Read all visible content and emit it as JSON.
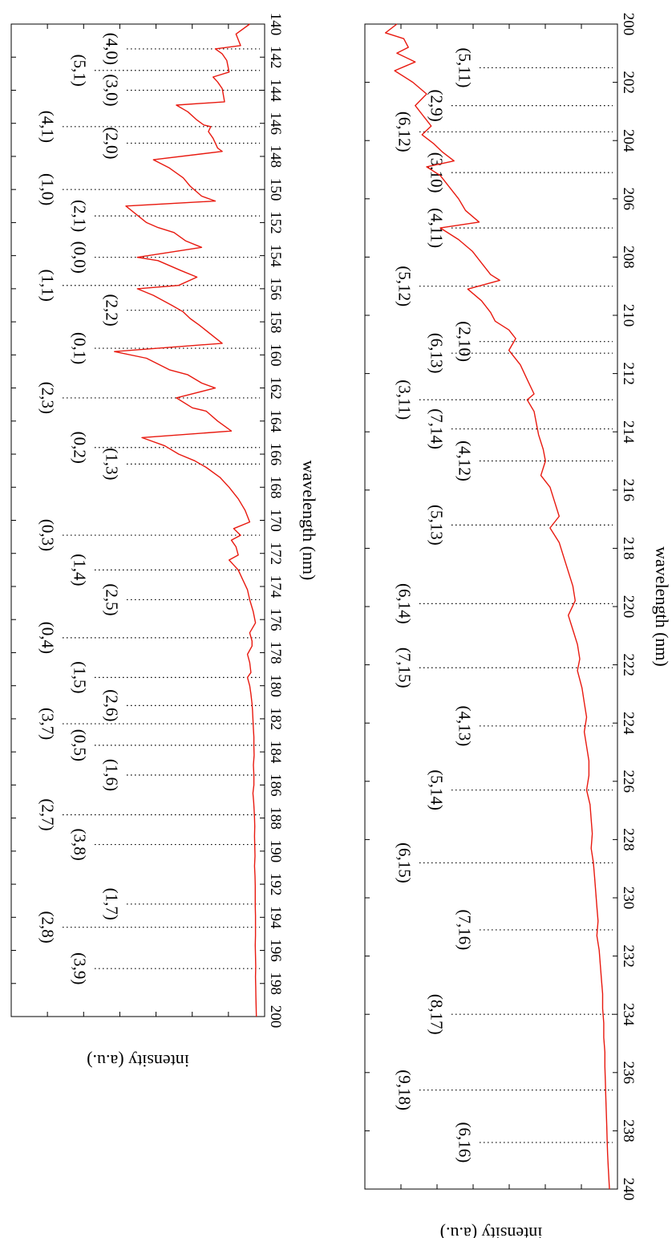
{
  "chart_data": [
    {
      "type": "line",
      "xlabel": "wavelength (nm)",
      "ylabel": "intensity (a.u.)",
      "xlim": [
        140,
        200
      ],
      "xticks": [
        140,
        142,
        144,
        146,
        148,
        150,
        152,
        154,
        156,
        158,
        160,
        162,
        164,
        166,
        168,
        170,
        172,
        174,
        176,
        178,
        180,
        182,
        184,
        186,
        188,
        190,
        192,
        194,
        196,
        198,
        200
      ],
      "ylim": [
        0,
        1
      ],
      "series": [
        {
          "color": "#e8190f",
          "x": [
            140.0,
            140.6,
            141.3,
            141.5,
            141.8,
            142.2,
            142.9,
            143.2,
            143.5,
            143.9,
            144.7,
            144.9,
            145.3,
            145.8,
            146.1,
            146.2,
            146.5,
            146.9,
            147.5,
            147.7,
            148.2,
            148.7,
            149.3,
            149.8,
            150.4,
            150.7,
            151.0,
            152.0,
            152.3,
            152.6,
            153.1,
            153.5,
            154.1,
            154.3,
            154.9,
            155.3,
            155.8,
            156.0,
            156.4,
            157.0,
            157.4,
            157.8,
            158.2,
            159.3,
            159.8,
            160.2,
            160.9,
            161.2,
            161.7,
            162.0,
            162.6,
            163.2,
            163.4,
            164.0,
            164.6,
            165.0,
            165.5,
            166.0,
            166.4,
            166.8,
            167.4,
            168.0,
            168.7,
            169.4,
            170.1,
            170.5,
            170.9,
            171.2,
            171.6,
            172.1,
            172.4,
            172.7,
            173.0,
            173.6,
            174.2,
            174.8,
            175.5,
            176.2,
            176.8,
            177.3,
            177.6,
            178.1,
            178.6,
            179.2,
            179.5,
            180.0,
            180.5,
            181.1,
            181.5,
            182.0,
            182.6,
            183.1,
            183.7,
            184.2,
            184.8,
            185.4,
            186.0,
            186.5,
            187.0,
            187.5,
            188.0,
            188.5,
            189.1,
            189.7,
            190.3,
            190.9,
            191.5,
            192.1,
            192.7,
            193.3,
            193.9,
            194.5,
            195.1,
            195.7,
            196.3,
            197.0,
            197.6,
            198.2,
            198.8,
            199.4,
            200.0
          ],
          "y": [
            0.03,
            0.09,
            0.07,
            0.18,
            0.15,
            0.13,
            0.12,
            0.19,
            0.17,
            0.15,
            0.14,
            0.35,
            0.3,
            0.26,
            0.23,
            0.2,
            0.21,
            0.19,
            0.17,
            0.15,
            0.45,
            0.38,
            0.32,
            0.29,
            0.24,
            0.18,
            0.57,
            0.48,
            0.43,
            0.36,
            0.31,
            0.24,
            0.52,
            0.43,
            0.33,
            0.26,
            0.34,
            0.52,
            0.45,
            0.37,
            0.32,
            0.29,
            0.25,
            0.15,
            0.62,
            0.48,
            0.38,
            0.3,
            0.24,
            0.18,
            0.35,
            0.28,
            0.22,
            0.17,
            0.11,
            0.5,
            0.4,
            0.34,
            0.27,
            0.22,
            0.16,
            0.12,
            0.08,
            0.05,
            0.03,
            0.1,
            0.07,
            0.11,
            0.09,
            0.08,
            0.12,
            0.1,
            0.08,
            0.06,
            0.04,
            0.03,
            0.015,
            0.005,
            0.03,
            0.02,
            0.02,
            0.04,
            0.03,
            0.025,
            0.04,
            0.03,
            0.025,
            0.02,
            0.018,
            0.016,
            0.014,
            0.012,
            0.012,
            0.011,
            0.014,
            0.012,
            0.012,
            0.016,
            0.013,
            0.011,
            0.009,
            0.008,
            0.009,
            0.008,
            0.007,
            0.009,
            0.007,
            0.006,
            0.006,
            0.006,
            0.005,
            0.005,
            0.005,
            0.006,
            0.005,
            0.004,
            0.005,
            0.004,
            0.003,
            0.002,
            0.001
          ]
        }
      ],
      "annotations": [
        {
          "label": "(4,0)",
          "x": 141.5,
          "row": 3
        },
        {
          "label": "(5,1)",
          "x": 142.8,
          "row": 2
        },
        {
          "label": "(3,0)",
          "x": 144.0,
          "row": 3
        },
        {
          "label": "(4,1)",
          "x": 146.2,
          "row": 1
        },
        {
          "label": "(2,0)",
          "x": 147.2,
          "row": 3
        },
        {
          "label": "(1,0)",
          "x": 150.0,
          "row": 1
        },
        {
          "label": "(2,1)",
          "x": 151.6,
          "row": 2
        },
        {
          "label": "(0,0)",
          "x": 154.1,
          "row": 2
        },
        {
          "label": "(1,1)",
          "x": 155.8,
          "row": 1
        },
        {
          "label": "(2,2)",
          "x": 157.3,
          "row": 3
        },
        {
          "label": "(0,1)",
          "x": 159.6,
          "row": 2
        },
        {
          "label": "(2,3)",
          "x": 162.6,
          "row": 1
        },
        {
          "label": "(0,2)",
          "x": 165.6,
          "row": 2
        },
        {
          "label": "(1,3)",
          "x": 166.6,
          "row": 3
        },
        {
          "label": "(0,3)",
          "x": 170.9,
          "row": 1
        },
        {
          "label": "(1,4)",
          "x": 173.0,
          "row": 2
        },
        {
          "label": "(2,5)",
          "x": 174.8,
          "row": 3
        },
        {
          "label": "(0,4)",
          "x": 177.1,
          "row": 1
        },
        {
          "label": "(1,5)",
          "x": 179.5,
          "row": 2
        },
        {
          "label": "(2,6)",
          "x": 181.2,
          "row": 3
        },
        {
          "label": "(3,7)",
          "x": 182.3,
          "row": 1
        },
        {
          "label": "(0,5)",
          "x": 183.6,
          "row": 2
        },
        {
          "label": "(1,6)",
          "x": 185.4,
          "row": 3
        },
        {
          "label": "(2,7)",
          "x": 187.8,
          "row": 1
        },
        {
          "label": "(3,8)",
          "x": 189.6,
          "row": 2
        },
        {
          "label": "(1,7)",
          "x": 193.2,
          "row": 3
        },
        {
          "label": "(2,8)",
          "x": 194.6,
          "row": 1
        },
        {
          "label": "(3,9)",
          "x": 197.1,
          "row": 2
        }
      ]
    },
    {
      "type": "line",
      "xlabel": "wavelength (nm)",
      "ylabel": "intensity (a.u.)",
      "xlim": [
        200,
        240
      ],
      "xticks": [
        200,
        202,
        204,
        206,
        208,
        210,
        212,
        214,
        216,
        218,
        220,
        222,
        224,
        226,
        228,
        230,
        232,
        234,
        236,
        238,
        240
      ],
      "ylim": [
        0,
        1
      ],
      "series": [
        {
          "color": "#e8190f",
          "x": [
            200.0,
            200.3,
            200.5,
            200.8,
            201.0,
            201.3,
            201.6,
            202.0,
            202.4,
            202.8,
            203.1,
            203.5,
            203.8,
            204.1,
            204.4,
            204.7,
            204.9,
            205.2,
            205.6,
            206.0,
            206.4,
            206.8,
            207.0,
            207.4,
            207.8,
            208.2,
            208.6,
            208.8,
            209.1,
            209.5,
            209.9,
            210.2,
            210.5,
            210.8,
            211.2,
            211.7,
            212.2,
            212.7,
            212.9,
            213.3,
            213.7,
            214.1,
            214.6,
            215.0,
            215.5,
            215.9,
            216.4,
            216.9,
            217.3,
            217.8,
            218.3,
            218.8,
            219.3,
            219.8,
            220.3,
            220.8,
            221.3,
            221.8,
            222.2,
            222.8,
            223.3,
            223.8,
            224.3,
            224.8,
            225.3,
            225.8,
            226.3,
            226.8,
            227.3,
            227.8,
            228.3,
            228.8,
            229.3,
            229.8,
            230.3,
            230.8,
            231.3,
            231.8,
            232.3,
            232.8,
            233.3,
            233.8,
            234.3,
            234.8,
            235.3,
            235.8,
            236.3,
            236.8,
            237.3,
            237.8,
            238.3,
            238.8,
            239.3,
            240.0
          ],
          "y": [
            0.93,
            0.98,
            0.9,
            0.88,
            0.93,
            0.85,
            0.94,
            0.86,
            0.8,
            0.85,
            0.82,
            0.78,
            0.82,
            0.77,
            0.73,
            0.68,
            0.8,
            0.74,
            0.7,
            0.66,
            0.63,
            0.57,
            0.74,
            0.66,
            0.6,
            0.56,
            0.52,
            0.48,
            0.62,
            0.56,
            0.52,
            0.5,
            0.44,
            0.41,
            0.44,
            0.39,
            0.36,
            0.33,
            0.36,
            0.33,
            0.32,
            0.31,
            0.29,
            0.28,
            0.3,
            0.26,
            0.24,
            0.22,
            0.26,
            0.22,
            0.2,
            0.18,
            0.16,
            0.15,
            0.18,
            0.16,
            0.14,
            0.13,
            0.14,
            0.12,
            0.11,
            0.1,
            0.11,
            0.1,
            0.09,
            0.09,
            0.1,
            0.085,
            0.08,
            0.075,
            0.08,
            0.07,
            0.065,
            0.06,
            0.055,
            0.05,
            0.055,
            0.045,
            0.04,
            0.035,
            0.03,
            0.03,
            0.025,
            0.025,
            0.02,
            0.02,
            0.018,
            0.016,
            0.014,
            0.012,
            0.01,
            0.008,
            0.005,
            0.0
          ]
        }
      ],
      "annotations": [
        {
          "label": "(5,11)",
          "x": 201.5,
          "row": 3
        },
        {
          "label": "(2,9)",
          "x": 202.8,
          "row": 2
        },
        {
          "label": "(6,12)",
          "x": 203.7,
          "row": 1
        },
        {
          "label": "(3,10)",
          "x": 205.1,
          "row": 2
        },
        {
          "label": "(4,11)",
          "x": 207.0,
          "row": 2
        },
        {
          "label": "(5,12)",
          "x": 209.0,
          "row": 1
        },
        {
          "label": "(2,10)",
          "x": 210.9,
          "row": 3
        },
        {
          "label": "(6,13)",
          "x": 211.3,
          "row": 2
        },
        {
          "label": "(3,11)",
          "x": 212.9,
          "row": 1
        },
        {
          "label": "(7,14)",
          "x": 213.9,
          "row": 2
        },
        {
          "label": "(4,12)",
          "x": 215.0,
          "row": 3
        },
        {
          "label": "(5,13)",
          "x": 217.2,
          "row": 2
        },
        {
          "label": "(6,14)",
          "x": 219.9,
          "row": 1
        },
        {
          "label": "(7,15)",
          "x": 222.1,
          "row": 1
        },
        {
          "label": "(4,13)",
          "x": 224.1,
          "row": 3
        },
        {
          "label": "(5,14)",
          "x": 226.3,
          "row": 2
        },
        {
          "label": "(6,15)",
          "x": 228.8,
          "row": 1
        },
        {
          "label": "(7,16)",
          "x": 231.1,
          "row": 3
        },
        {
          "label": "(8,17)",
          "x": 234.0,
          "row": 2
        },
        {
          "label": "(9,18)",
          "x": 236.6,
          "row": 1
        },
        {
          "label": "(6,16)",
          "x": 238.4,
          "row": 3
        }
      ]
    }
  ]
}
